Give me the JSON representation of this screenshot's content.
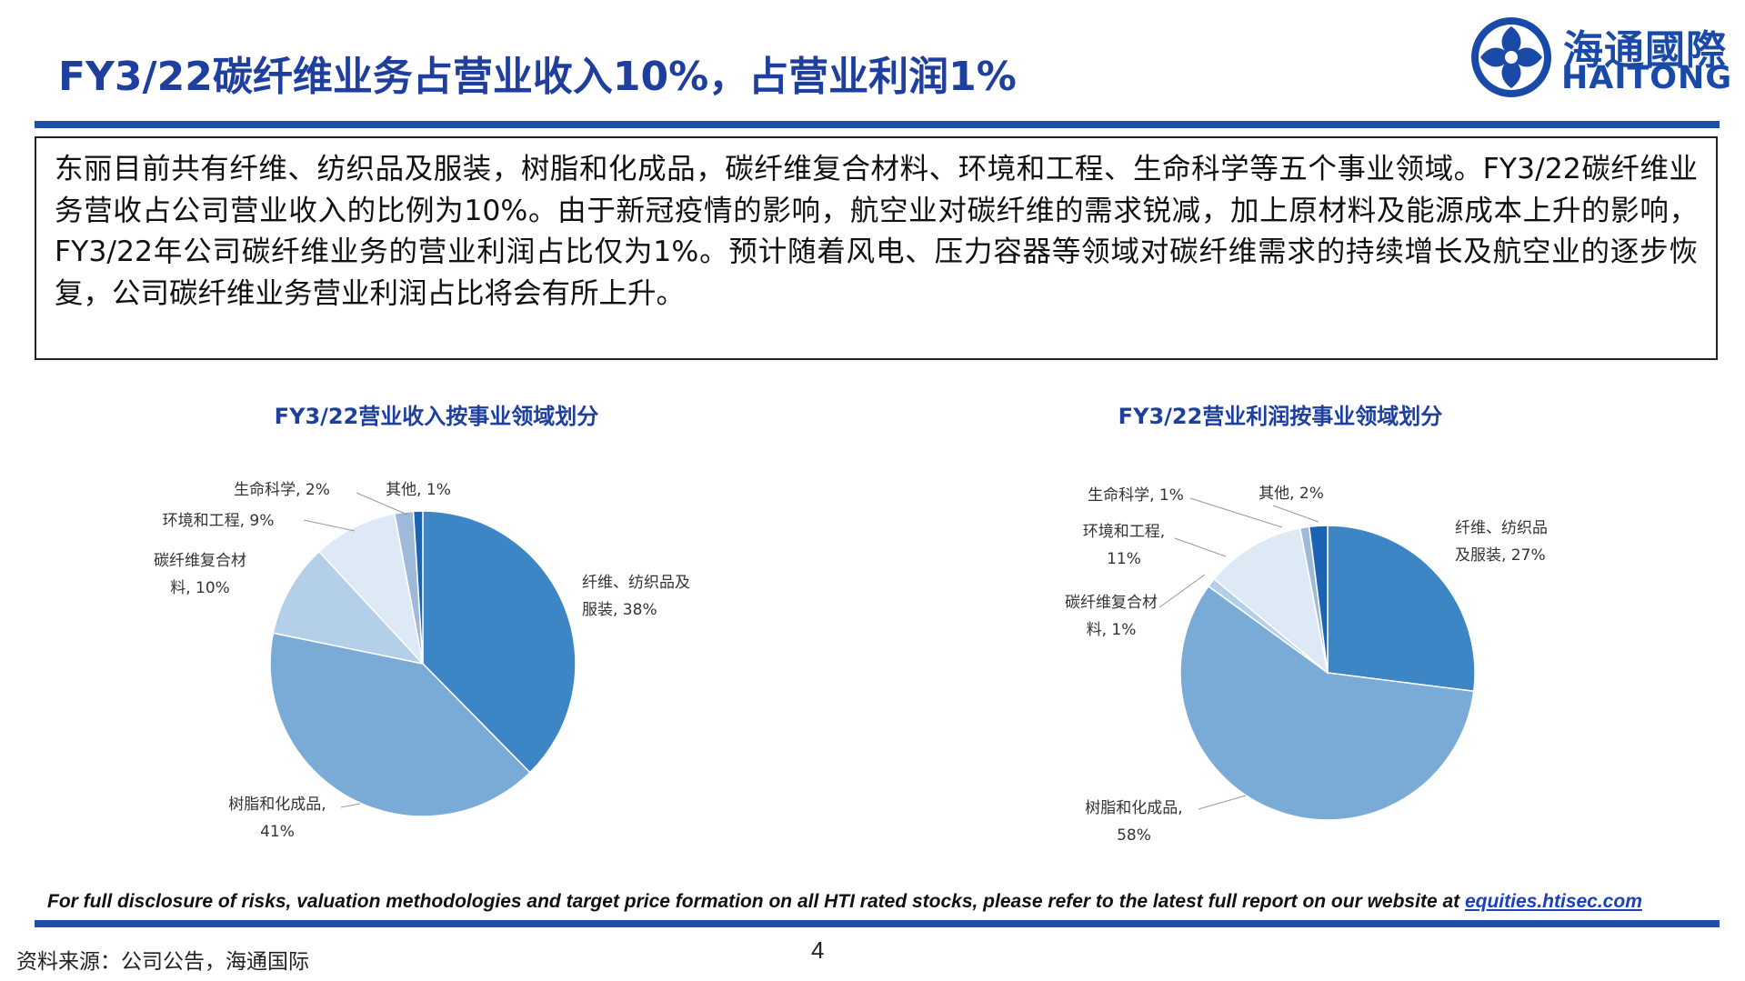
{
  "header": {
    "title": "FY3/22碳纤维业务占营业收入10%，占营业利润1%",
    "logo": {
      "cn": "海通國際",
      "en": "HAITONG",
      "icon": "haitong-logo-icon",
      "color": "#1a4aa8"
    }
  },
  "summary": "东丽目前共有纤维、纺织品及服装，树脂和化成品，碳纤维复合材料、环境和工程、生命科学等五个事业领域。FY3/22碳纤维业务营收占公司营业收入的比例为10%。由于新冠疫情的影响，航空业对碳纤维的需求锐减，加上原材料及能源成本上升的影响，FY3/22年公司碳纤维业务的营业利润占比仅为1%。预计随着风电、压力容器等领域对碳纤维需求的持续增长及航空业的逐步恢复，公司碳纤维业务营业利润占比将会有所上升。",
  "chart_data": [
    {
      "type": "pie",
      "title": "FY3/22营业收入按事业领域划分",
      "slices": [
        {
          "label": "纤维、纺织品及服装",
          "value": 38,
          "text": [
            "纤维、纺织品及",
            "服装, 38%"
          ],
          "color": "#3d86c6"
        },
        {
          "label": "树脂和化成品",
          "value": 41,
          "text": [
            "树脂和化成品,",
            "41%"
          ],
          "color": "#79abd6"
        },
        {
          "label": "碳纤维复合材料",
          "value": 10,
          "text": [
            "碳纤维复合材",
            "料, 10%"
          ],
          "color": "#b4d0e8"
        },
        {
          "label": "环境和工程",
          "value": 9,
          "text": [
            "环境和工程, 9%"
          ],
          "color": "#dde9f5"
        },
        {
          "label": "生命科学",
          "value": 2,
          "text": [
            "生命科学, 2%"
          ],
          "color": "#9fbad9"
        },
        {
          "label": "其他",
          "value": 1,
          "text": [
            "其他, 1%"
          ],
          "color": "#1c63b4"
        }
      ]
    },
    {
      "type": "pie",
      "title": "FY3/22营业利润按事业领域划分",
      "slices": [
        {
          "label": "纤维、纺织品及服装",
          "value": 27,
          "text": [
            "纤维、纺织品",
            "及服装, 27%"
          ],
          "color": "#3d86c6"
        },
        {
          "label": "树脂和化成品",
          "value": 58,
          "text": [
            "树脂和化成品,",
            "58%"
          ],
          "color": "#79abd6"
        },
        {
          "label": "碳纤维复合材料",
          "value": 1,
          "text": [
            "碳纤维复合材",
            "料, 1%"
          ],
          "color": "#b4d0e8"
        },
        {
          "label": "环境和工程",
          "value": 11,
          "text": [
            "环境和工程,",
            "11%"
          ],
          "color": "#dde9f5"
        },
        {
          "label": "生命科学",
          "value": 1,
          "text": [
            "生命科学, 1%"
          ],
          "color": "#9fbad9"
        },
        {
          "label": "其他",
          "value": 2,
          "text": [
            "其他, 2%"
          ],
          "color": "#1c63b4"
        }
      ]
    }
  ],
  "footer": {
    "disclaimer": "For full disclosure of risks, valuation methodologies and target price formation on all HTI rated stocks, please refer to the latest full report on our website at ",
    "link": "equities.htisec.com",
    "source": "资料来源：公司公告，海通国际",
    "page_number": "4"
  }
}
